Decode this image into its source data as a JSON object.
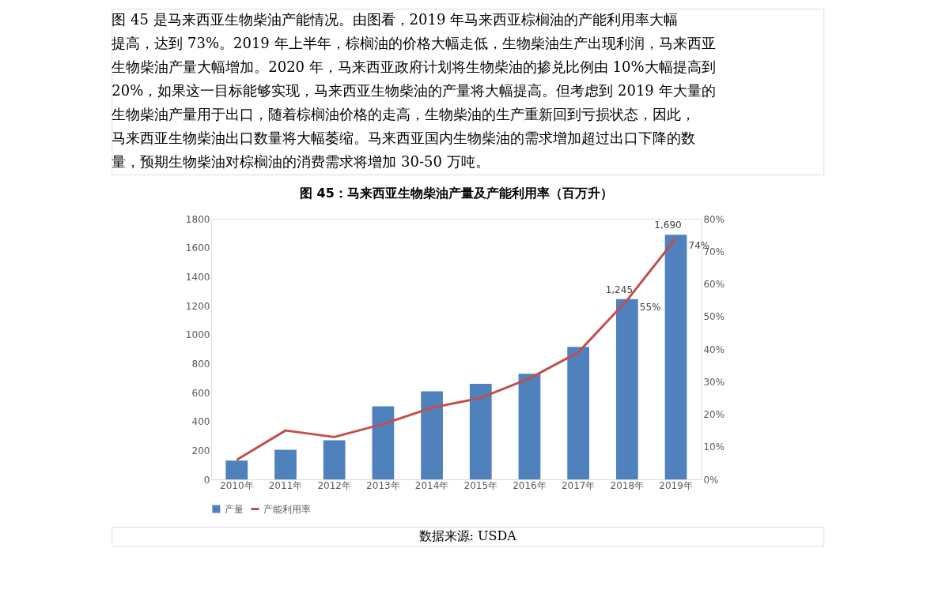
{
  "chart_data": {
    "type": "bar",
    "title": "图 45：马来西亚生物柴油产量及产能利用率（百万升）",
    "annotations": [
      "图 45 是马来西亚生物柴油产能情况。由图看，2019 年马来西亚棕榈油的产能利用率大幅",
      "提高，达到 73%。2019 年上半年，棕榈油的价格大幅走低，生物柴油生产出现利润，马来西亚",
      "生物柴油产量大幅增加。2020 年，马来西亚政府计划将生物柴油的掺兑比例由 10%大幅提高到",
      "20%，如果这一目标能够实现，马来西亚生物柴油的产量将大幅提高。但考虑到 2019 年大量的",
      "生物柴油产量用于出口，随着棕榈油价格的走高，生物柴油的生产重新回到亏损状态，因此，",
      "马来西亚生物柴油出口数量将大幅萎缩。马来西亚国内生物柴油的需求增加超过出口下降的数",
      "量，预期生物柴油对棕榈油的消费需求将增加 30-50 万吨。",
      "数据来源: USDA"
    ],
    "categories": [
      "2010年",
      "2011年",
      "2012年",
      "2013年",
      "2014年",
      "2015年",
      "2016年",
      "2017年",
      "2018年",
      "2019年"
    ],
    "series": [
      {
        "name": "产量",
        "type": "bar",
        "color": "#4f81bd",
        "values": [
          130,
          205,
          270,
          505,
          608,
          660,
          730,
          915,
          1245,
          1690
        ],
        "value_labels": [
          null,
          null,
          null,
          null,
          null,
          null,
          null,
          null,
          "1,245",
          "1,690"
        ]
      },
      {
        "name": "产能利用率",
        "type": "line",
        "axis": "y2",
        "color": "#c0504d",
        "values": [
          6,
          15,
          13,
          17,
          22,
          25,
          31,
          39,
          55,
          74
        ],
        "value_labels": [
          null,
          null,
          null,
          null,
          null,
          null,
          null,
          null,
          "55%",
          "74%"
        ]
      }
    ],
    "ylim": [
      0,
      1800
    ],
    "yticks": [
      0,
      200,
      400,
      600,
      800,
      1000,
      1200,
      1400,
      1600,
      1800
    ],
    "y2lim": [
      0,
      80
    ],
    "y2ticks": [
      {
        "value": 0,
        "label": "0%"
      },
      {
        "value": 10,
        "label": "10%"
      },
      {
        "value": 20,
        "label": "20%"
      },
      {
        "value": 30,
        "label": "30%"
      },
      {
        "value": 40,
        "label": "40%"
      },
      {
        "value": 50,
        "label": "50%"
      },
      {
        "value": 60,
        "label": "60%"
      },
      {
        "value": 70,
        "label": "70%"
      },
      {
        "value": 80,
        "label": "80%"
      }
    ],
    "grid": false,
    "legend": "bottom",
    "marker": "none",
    "line_style": "solid"
  }
}
